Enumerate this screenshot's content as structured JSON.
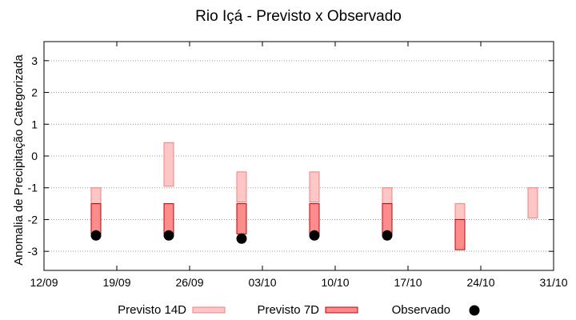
{
  "chart_data": {
    "type": "range-bar",
    "title": "Rio Içá - Previsto x Observado",
    "xlabel": "",
    "ylabel": "Anomalia de Precipitação Categorizada",
    "ylim": [
      -3.6,
      3.6
    ],
    "yticks": [
      3,
      2,
      1,
      0,
      -1,
      -2,
      -3
    ],
    "ytick_labels": [
      "3",
      "2",
      "1",
      "0",
      "-1",
      "-2",
      "-3"
    ],
    "xlim_days": [
      0,
      49
    ],
    "xticks_days": [
      0,
      7,
      14,
      21,
      28,
      35,
      42,
      49
    ],
    "xtick_labels": [
      "12/09",
      "19/09",
      "26/09",
      "03/10",
      "10/10",
      "17/10",
      "24/10",
      "31/10"
    ],
    "grid": "horizontal-dotted",
    "legend_position": "bottom",
    "colors": {
      "prev14_fill": "#ffc6c6",
      "prev14_stroke": "#f08080",
      "prev7_fill": "#ff8c8c",
      "prev7_stroke": "#c00000",
      "observed": "#000000"
    },
    "series": [
      {
        "name": "Previsto 14D",
        "kind": "range",
        "points": [
          {
            "x": 5,
            "low": -1.5,
            "high": -1.0
          },
          {
            "x": 12,
            "low": -0.95,
            "high": 0.42
          },
          {
            "x": 19,
            "low": -1.45,
            "high": -0.5
          },
          {
            "x": 26,
            "low": -1.45,
            "high": -0.5
          },
          {
            "x": 33,
            "low": -1.5,
            "high": -1.0
          },
          {
            "x": 40,
            "low": -2.0,
            "high": -1.5
          },
          {
            "x": 47,
            "low": -1.95,
            "high": -1.0
          }
        ]
      },
      {
        "name": "Previsto 7D",
        "kind": "range",
        "points": [
          {
            "x": 5,
            "low": -2.45,
            "high": -1.5
          },
          {
            "x": 12,
            "low": -2.45,
            "high": -1.5
          },
          {
            "x": 19,
            "low": -2.45,
            "high": -1.5
          },
          {
            "x": 26,
            "low": -2.45,
            "high": -1.5
          },
          {
            "x": 33,
            "low": -2.45,
            "high": -1.5
          },
          {
            "x": 40,
            "low": -2.95,
            "high": -2.0
          }
        ]
      },
      {
        "name": "Observado",
        "kind": "point",
        "points": [
          {
            "x": 5,
            "y": -2.5
          },
          {
            "x": 12,
            "y": -2.5
          },
          {
            "x": 19,
            "y": -2.6
          },
          {
            "x": 26,
            "y": -2.5
          },
          {
            "x": 33,
            "y": -2.5
          }
        ]
      }
    ]
  }
}
